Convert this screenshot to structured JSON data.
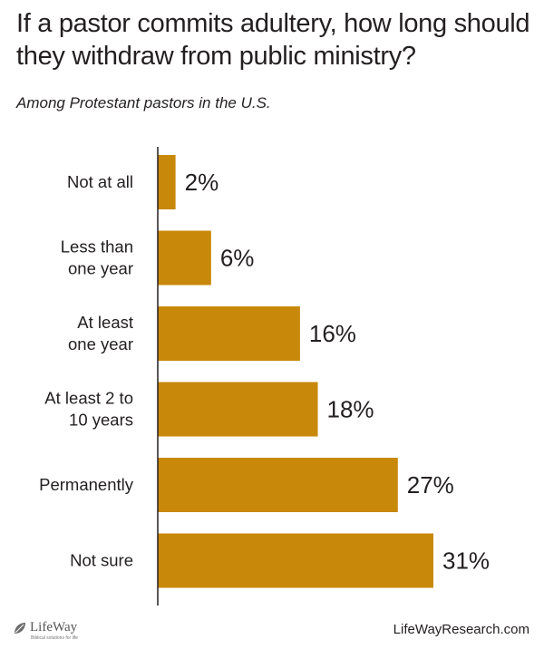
{
  "header": {
    "title": "If a pastor commits adultery, how long should they withdraw from public ministry?",
    "subtitle": "Among Protestant pastors in the U.S."
  },
  "colors": {
    "bar": "#c8880a",
    "axis": "#231f20",
    "text": "#231f20"
  },
  "chart_data": {
    "type": "bar",
    "orientation": "horizontal",
    "title": "If a pastor commits adultery, how long should they withdraw from public ministry?",
    "subtitle": "Among Protestant pastors in the U.S.",
    "categories": [
      [
        "Not at all"
      ],
      [
        "Less than",
        "one year"
      ],
      [
        "At least",
        "one year"
      ],
      [
        "At least 2 to",
        "10 years"
      ],
      [
        "Permanently"
      ],
      [
        "Not sure"
      ]
    ],
    "values": [
      2,
      6,
      16,
      18,
      27,
      31
    ],
    "value_labels": [
      "2%",
      "6%",
      "16%",
      "18%",
      "27%",
      "31%"
    ],
    "unit": "%",
    "xlim": [
      0,
      31
    ],
    "grid": false,
    "legend": "none"
  },
  "footer": {
    "logo_text": "LifeWay",
    "logo_tagline": "Biblical solutions for life",
    "url": "LifeWayResearch.com"
  }
}
